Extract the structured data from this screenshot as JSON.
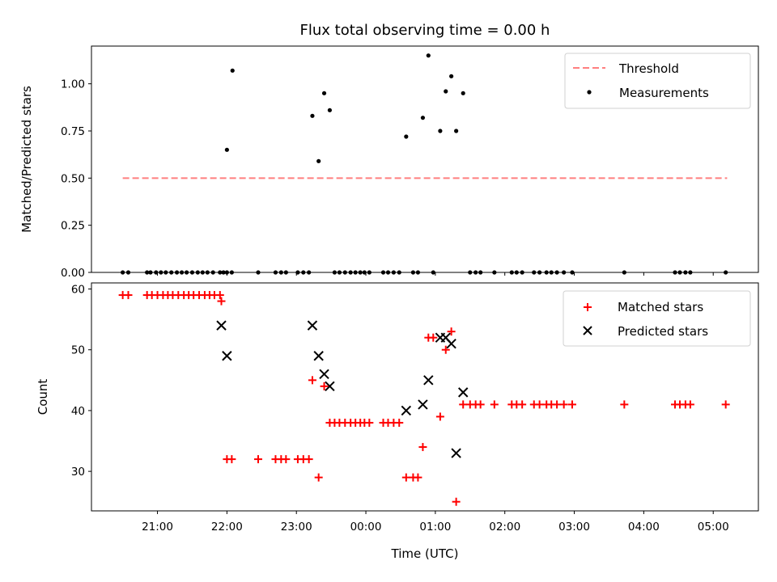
{
  "chart_data": {
    "type": "scatter",
    "title": "Flux total observing time = 0.00 h",
    "x_axis": {
      "label": "Time (UTC)",
      "unit": "hours relative to 00:00 UTC",
      "range": [
        -3.95,
        5.65
      ],
      "ticks": [
        -3,
        -2,
        -1,
        0,
        1,
        2,
        3,
        4,
        5
      ],
      "tick_labels": [
        "21:00",
        "22:00",
        "23:00",
        "00:00",
        "01:00",
        "02:00",
        "03:00",
        "04:00",
        "05:00"
      ]
    },
    "panels": [
      {
        "ylabel": "Matched/Predicted stars",
        "ylim": [
          0,
          1.2
        ],
        "yticks": [
          0,
          0.25,
          0.5,
          0.75,
          1.0
        ],
        "ytick_labels": [
          "0.00",
          "0.25",
          "0.50",
          "0.75",
          "1.00"
        ],
        "legend_position": "upper right",
        "threshold": {
          "name": "Threshold",
          "value": 0.5,
          "x_range": [
            -3.5,
            5.2
          ],
          "color": "#ff7f7f",
          "style": "dashed"
        },
        "measurements": {
          "name": "Measurements",
          "color": "#000000",
          "points": [
            [
              -3.5,
              0
            ],
            [
              -3.42,
              0
            ],
            [
              -3.15,
              0
            ],
            [
              -3.1,
              0
            ],
            [
              -3.02,
              0
            ],
            [
              -2.95,
              0
            ],
            [
              -2.88,
              0
            ],
            [
              -2.8,
              0
            ],
            [
              -2.72,
              0
            ],
            [
              -2.65,
              0
            ],
            [
              -2.58,
              0
            ],
            [
              -2.5,
              0
            ],
            [
              -2.42,
              0
            ],
            [
              -2.35,
              0
            ],
            [
              -2.28,
              0
            ],
            [
              -2.2,
              0
            ],
            [
              -2.1,
              0
            ],
            [
              -1.92,
              1.07
            ],
            [
              -2.0,
              0
            ],
            [
              -2.05,
              0
            ],
            [
              -2.0,
              0.65
            ],
            [
              -1.93,
              0
            ],
            [
              -1.55,
              0
            ],
            [
              -1.3,
              0
            ],
            [
              -1.22,
              0
            ],
            [
              -1.15,
              0
            ],
            [
              -0.98,
              0
            ],
            [
              -0.9,
              0
            ],
            [
              -0.82,
              0
            ],
            [
              -0.77,
              0.83
            ],
            [
              -0.68,
              0.59
            ],
            [
              -0.6,
              0.95
            ],
            [
              -0.52,
              0.86
            ],
            [
              -0.45,
              0
            ],
            [
              -0.38,
              0
            ],
            [
              -0.3,
              0
            ],
            [
              -0.22,
              0
            ],
            [
              -0.15,
              0
            ],
            [
              -0.08,
              0
            ],
            [
              -0.02,
              0
            ],
            [
              0.05,
              0
            ],
            [
              0.25,
              0
            ],
            [
              0.32,
              0
            ],
            [
              0.4,
              0
            ],
            [
              0.48,
              0
            ],
            [
              0.58,
              0.72
            ],
            [
              0.68,
              0
            ],
            [
              0.75,
              0
            ],
            [
              0.82,
              0.82
            ],
            [
              0.9,
              1.15
            ],
            [
              0.97,
              0
            ],
            [
              1.07,
              0.75
            ],
            [
              1.15,
              0.96
            ],
            [
              1.23,
              1.04
            ],
            [
              1.3,
              0.75
            ],
            [
              1.4,
              0.95
            ],
            [
              1.5,
              0
            ],
            [
              1.58,
              0
            ],
            [
              1.65,
              0
            ],
            [
              1.85,
              0
            ],
            [
              2.1,
              0
            ],
            [
              2.17,
              0
            ],
            [
              2.25,
              0
            ],
            [
              2.42,
              0
            ],
            [
              2.5,
              0
            ],
            [
              2.6,
              0
            ],
            [
              2.67,
              0
            ],
            [
              2.75,
              0
            ],
            [
              2.85,
              0
            ],
            [
              2.97,
              0
            ],
            [
              3.72,
              0
            ],
            [
              4.45,
              0
            ],
            [
              4.52,
              0
            ],
            [
              4.6,
              0
            ],
            [
              4.67,
              0
            ],
            [
              5.18,
              0
            ]
          ]
        }
      },
      {
        "ylabel": "Count",
        "ylim": [
          23.5,
          61
        ],
        "yticks": [
          30,
          40,
          50,
          60
        ],
        "ytick_labels": [
          "30",
          "40",
          "50",
          "60"
        ],
        "legend_position": "upper right",
        "series": [
          {
            "name": "Matched stars",
            "marker": "+",
            "color": "#ff0000",
            "points": [
              [
                -3.5,
                59
              ],
              [
                -3.42,
                59
              ],
              [
                -3.15,
                59
              ],
              [
                -3.08,
                59
              ],
              [
                -3.0,
                59
              ],
              [
                -2.92,
                59
              ],
              [
                -2.85,
                59
              ],
              [
                -2.78,
                59
              ],
              [
                -2.7,
                59
              ],
              [
                -2.62,
                59
              ],
              [
                -2.55,
                59
              ],
              [
                -2.48,
                59
              ],
              [
                -2.4,
                59
              ],
              [
                -2.32,
                59
              ],
              [
                -2.25,
                59
              ],
              [
                -2.18,
                59
              ],
              [
                -2.1,
                59
              ],
              [
                -2.08,
                58
              ],
              [
                -2.0,
                32
              ],
              [
                -1.93,
                32
              ],
              [
                -1.55,
                32
              ],
              [
                -1.3,
                32
              ],
              [
                -1.22,
                32
              ],
              [
                -1.15,
                32
              ],
              [
                -0.98,
                32
              ],
              [
                -0.9,
                32
              ],
              [
                -0.82,
                32
              ],
              [
                -0.77,
                45
              ],
              [
                -0.68,
                29
              ],
              [
                -0.6,
                44
              ],
              [
                -0.52,
                38
              ],
              [
                -0.45,
                38
              ],
              [
                -0.38,
                38
              ],
              [
                -0.3,
                38
              ],
              [
                -0.22,
                38
              ],
              [
                -0.15,
                38
              ],
              [
                -0.08,
                38
              ],
              [
                -0.02,
                38
              ],
              [
                0.05,
                38
              ],
              [
                0.25,
                38
              ],
              [
                0.32,
                38
              ],
              [
                0.4,
                38
              ],
              [
                0.48,
                38
              ],
              [
                0.58,
                29
              ],
              [
                0.68,
                29
              ],
              [
                0.75,
                29
              ],
              [
                0.82,
                34
              ],
              [
                0.9,
                52
              ],
              [
                0.97,
                52
              ],
              [
                1.07,
                39
              ],
              [
                1.15,
                50
              ],
              [
                1.23,
                53
              ],
              [
                1.3,
                25
              ],
              [
                1.4,
                41
              ],
              [
                1.5,
                41
              ],
              [
                1.58,
                41
              ],
              [
                1.65,
                41
              ],
              [
                1.85,
                41
              ],
              [
                2.1,
                41
              ],
              [
                2.17,
                41
              ],
              [
                2.25,
                41
              ],
              [
                2.42,
                41
              ],
              [
                2.5,
                41
              ],
              [
                2.6,
                41
              ],
              [
                2.67,
                41
              ],
              [
                2.75,
                41
              ],
              [
                2.85,
                41
              ],
              [
                2.97,
                41
              ],
              [
                3.72,
                41
              ],
              [
                4.45,
                41
              ],
              [
                4.52,
                41
              ],
              [
                4.6,
                41
              ],
              [
                4.67,
                41
              ],
              [
                5.18,
                41
              ]
            ]
          },
          {
            "name": "Predicted stars",
            "marker": "x",
            "color": "#000000",
            "points": [
              [
                -2.08,
                54
              ],
              [
                -2.0,
                49
              ],
              [
                -0.77,
                54
              ],
              [
                -0.68,
                49
              ],
              [
                -0.6,
                46
              ],
              [
                -0.52,
                44
              ],
              [
                0.58,
                40
              ],
              [
                0.82,
                41
              ],
              [
                0.9,
                45
              ],
              [
                1.07,
                52
              ],
              [
                1.15,
                52
              ],
              [
                1.23,
                51
              ],
              [
                1.3,
                33
              ],
              [
                1.4,
                43
              ]
            ]
          }
        ]
      }
    ]
  }
}
